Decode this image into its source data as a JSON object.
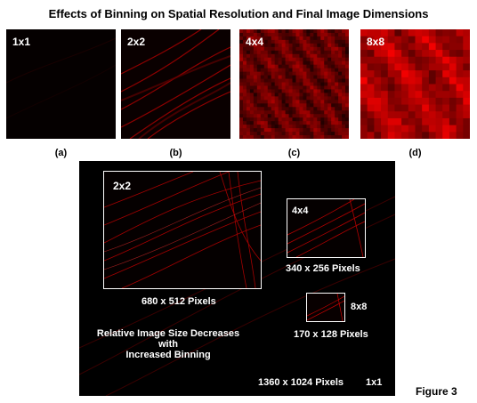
{
  "title": "Effects of Binning on Spatial Resolution and Final Image Dimensions",
  "panels": [
    {
      "label": "1x1",
      "caption": "(a)"
    },
    {
      "label": "2x2",
      "caption": "(b)"
    },
    {
      "label": "4x4",
      "caption": "(c)"
    },
    {
      "label": "8x8",
      "caption": "(d)"
    }
  ],
  "composite": {
    "box_2x2_label": "2x2",
    "box_2x2_size": "680 x 512 Pixels",
    "box_4x4_label": "4x4",
    "box_4x4_size": "340 x 256 Pixels",
    "box_8x8_label": "8x8",
    "box_8x8_size": "170 x 128 Pixels",
    "note_line1": "Relative Image Size Decreases",
    "note_line2": "with",
    "note_line3": "Increased Binning",
    "full_size": "1360 x 1024 Pixels",
    "full_label": "1x1"
  },
  "figure_label": "Figure 3",
  "colors": {
    "accent_red": "#e00000",
    "background": "#000000"
  }
}
